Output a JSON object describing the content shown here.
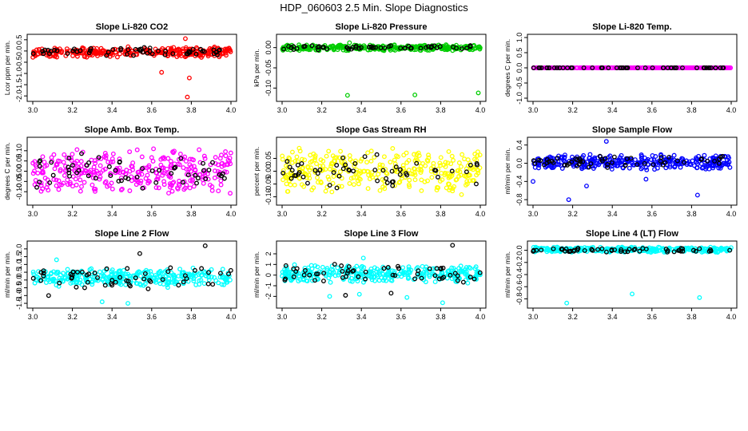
{
  "page": {
    "title": "HDP_060603  2.5 Min. Slope Diagnostics"
  },
  "chart_data": [
    {
      "type": "scatter",
      "title": "Slope Li-820 CO2",
      "ylabel": "Lcor ppm per min.",
      "xlim": [
        3.0,
        4.0
      ],
      "ylim": [
        -2.1,
        0.6
      ],
      "xticks": [
        "3.0",
        "3.2",
        "3.4",
        "3.6",
        "3.8",
        "4.0"
      ],
      "yticks": [
        0.5,
        0.0,
        -0.5,
        -1.0,
        -1.5,
        -2.0
      ],
      "ytick_labels": [
        "0.5",
        "0.0",
        "-0.5",
        "-1.0",
        "-1.5",
        "-2.0"
      ],
      "series": [
        {
          "color": "#ff0000",
          "band": [
            -0.3,
            0.2
          ],
          "outliers": [
            [
              3.77,
              0.55
            ],
            [
              3.65,
              -0.95
            ],
            [
              3.79,
              -1.2
            ],
            [
              3.78,
              -2.05
            ]
          ]
        },
        {
          "color": "#000000",
          "band": [
            -0.25,
            0.2
          ]
        }
      ]
    },
    {
      "type": "scatter",
      "title": "Slope Li-820 Pressure",
      "ylabel": "kPa per min.",
      "xlim": [
        3.0,
        4.0
      ],
      "ylim": [
        -0.125,
        0.025
      ],
      "xticks": [
        "3.0",
        "3.2",
        "3.4",
        "3.6",
        "3.8",
        "4.0"
      ],
      "yticks": [
        0.0,
        -0.05,
        -0.1
      ],
      "ytick_labels": [
        "0.00",
        "-0.05",
        "-0.10"
      ],
      "series": [
        {
          "color": "#00cd00",
          "band": [
            -0.008,
            0.008
          ],
          "outliers": [
            [
              3.33,
              -0.118
            ],
            [
              3.67,
              -0.117
            ],
            [
              3.99,
              -0.112
            ],
            [
              3.34,
              0.012
            ]
          ]
        },
        {
          "color": "#000000",
          "band": [
            -0.006,
            0.006
          ]
        }
      ]
    },
    {
      "type": "scatter",
      "title": "Slope Li-820 Temp.",
      "ylabel": "degrees C per min.",
      "xlim": [
        3.0,
        4.0
      ],
      "ylim": [
        -1.0,
        1.0
      ],
      "xticks": [
        "3.0",
        "3.2",
        "3.4",
        "3.6",
        "3.8",
        "4.0"
      ],
      "yticks": [
        1.0,
        0.5,
        0.0,
        -0.5,
        -1.0
      ],
      "ytick_labels": [
        "1.0",
        "0.5",
        "0.0",
        "-0.5",
        "-1.0"
      ],
      "series": [
        {
          "color": "#ff00ff",
          "band": [
            0,
            0
          ]
        },
        {
          "color": "#000000",
          "band": [
            0,
            0
          ]
        }
      ]
    },
    {
      "type": "scatter",
      "title": "Slope Amb. Box Temp.",
      "ylabel": "degrees C per min.",
      "xlim": [
        3.0,
        4.0
      ],
      "ylim": [
        -0.15,
        0.15
      ],
      "xticks": [
        "3.0",
        "3.2",
        "3.4",
        "3.6",
        "3.8",
        "4.0"
      ],
      "yticks": [
        0.1,
        0.05,
        0.0,
        -0.05,
        -0.1
      ],
      "ytick_labels": [
        "0.10",
        "0.05",
        "0.00",
        "-0.05",
        "-0.10"
      ],
      "series": [
        {
          "color": "#ff00ff",
          "band": [
            -0.12,
            0.12
          ]
        },
        {
          "color": "#000000",
          "band": [
            -0.1,
            0.1
          ]
        }
      ]
    },
    {
      "type": "scatter",
      "title": "Slope Gas Stream RH",
      "ylabel": "percent per min.",
      "xlim": [
        3.0,
        4.0
      ],
      "ylim": [
        -0.12,
        0.12
      ],
      "xticks": [
        "3.0",
        "3.2",
        "3.4",
        "3.6",
        "3.8",
        "4.0"
      ],
      "yticks": [
        0.05,
        0.0,
        -0.05,
        -0.1
      ],
      "ytick_labels": [
        "0.05",
        "0.00",
        "-0.05",
        "-0.10"
      ],
      "series": [
        {
          "color": "#ffff00",
          "band": [
            -0.1,
            0.1
          ]
        },
        {
          "color": "#000000",
          "band": [
            -0.08,
            0.08
          ]
        }
      ]
    },
    {
      "type": "scatter",
      "title": "Slope Sample Flow",
      "ylabel": "ml/min per min.",
      "xlim": [
        3.0,
        4.0
      ],
      "ylim": [
        -0.85,
        0.5
      ],
      "xticks": [
        "3.0",
        "3.2",
        "3.4",
        "3.6",
        "3.8",
        "4.0"
      ],
      "yticks": [
        0.4,
        0.0,
        -0.4,
        -0.8
      ],
      "ytick_labels": [
        "0.4",
        "0.0",
        "-0.4",
        "-0.8"
      ],
      "series": [
        {
          "color": "#0000ff",
          "band": [
            -0.15,
            0.2
          ],
          "outliers": [
            [
              3.18,
              -0.8
            ],
            [
              3.37,
              0.48
            ],
            [
              3.27,
              -0.5
            ],
            [
              3.83,
              -0.7
            ],
            [
              3.0,
              -0.4
            ],
            [
              3.57,
              -0.35
            ]
          ]
        },
        {
          "color": "#000000",
          "band": [
            -0.12,
            0.18
          ]
        }
      ]
    },
    {
      "type": "scatter",
      "title": "Slope Line 2 Flow",
      "ylabel": "ml/min per min.",
      "xlim": [
        3.0,
        4.0
      ],
      "ylim": [
        -1.6,
        2.3
      ],
      "xticks": [
        "3.0",
        "3.2",
        "3.4",
        "3.6",
        "3.8",
        "4.0"
      ],
      "yticks": [
        2.0,
        1.5,
        1.0,
        0.5,
        0.0,
        -0.5,
        -1.0,
        -1.5
      ],
      "ytick_labels": [
        "2.0",
        "1.5",
        "1.0",
        "0.5",
        "0.0",
        "-0.5",
        "-1.0",
        "-1.5"
      ],
      "series": [
        {
          "color": "#00ffff",
          "band": [
            -0.5,
            0.8
          ],
          "outliers": [
            [
              3.35,
              -1.4
            ],
            [
              3.48,
              -1.5
            ],
            [
              3.12,
              1.3
            ]
          ]
        },
        {
          "color": "#000000",
          "band": [
            -0.6,
            0.9
          ],
          "outliers": [
            [
              3.87,
              2.2
            ],
            [
              3.54,
              1.7
            ],
            [
              3.08,
              -1.0
            ]
          ]
        }
      ]
    },
    {
      "type": "scatter",
      "title": "Slope Line 3 Flow",
      "ylabel": "ml/min per min.",
      "xlim": [
        3.0,
        4.0
      ],
      "ylim": [
        -2.8,
        2.9
      ],
      "xticks": [
        "3.0",
        "3.2",
        "3.4",
        "3.6",
        "3.8",
        "4.0"
      ],
      "yticks": [
        2,
        1,
        0,
        -1,
        -2
      ],
      "ytick_labels": [
        "2",
        "1",
        "0",
        "-1",
        "-2"
      ],
      "series": [
        {
          "color": "#00ffff",
          "band": [
            -0.8,
            1.0
          ],
          "outliers": [
            [
              3.24,
              -2.0
            ],
            [
              3.39,
              -1.8
            ],
            [
              3.63,
              -2.1
            ],
            [
              3.81,
              -2.6
            ],
            [
              3.41,
              1.6
            ]
          ]
        },
        {
          "color": "#000000",
          "band": [
            -0.9,
            1.1
          ],
          "outliers": [
            [
              3.86,
              2.8
            ],
            [
              3.32,
              -1.9
            ],
            [
              3.55,
              -1.7
            ]
          ]
        }
      ]
    },
    {
      "type": "scatter",
      "title": "Slope Line 4 (LT) Flow",
      "ylabel": "ml/min per min.",
      "xlim": [
        3.0,
        4.0
      ],
      "ylim": [
        -0.9,
        0.1
      ],
      "xticks": [
        "3.0",
        "3.2",
        "3.4",
        "3.6",
        "3.8",
        "4.0"
      ],
      "yticks": [
        0.0,
        -0.2,
        -0.4,
        -0.6,
        -0.8
      ],
      "ytick_labels": [
        "0.0",
        "-0.2",
        "-0.4",
        "-0.6",
        "-0.8"
      ],
      "series": [
        {
          "color": "#00ffff",
          "band": [
            -0.04,
            0.06
          ],
          "outliers": [
            [
              3.17,
              -0.87
            ],
            [
              3.5,
              -0.72
            ],
            [
              3.84,
              -0.78
            ],
            [
              3.85,
              0.04
            ]
          ]
        },
        {
          "color": "#000000",
          "band": [
            -0.04,
            0.05
          ]
        }
      ]
    }
  ]
}
